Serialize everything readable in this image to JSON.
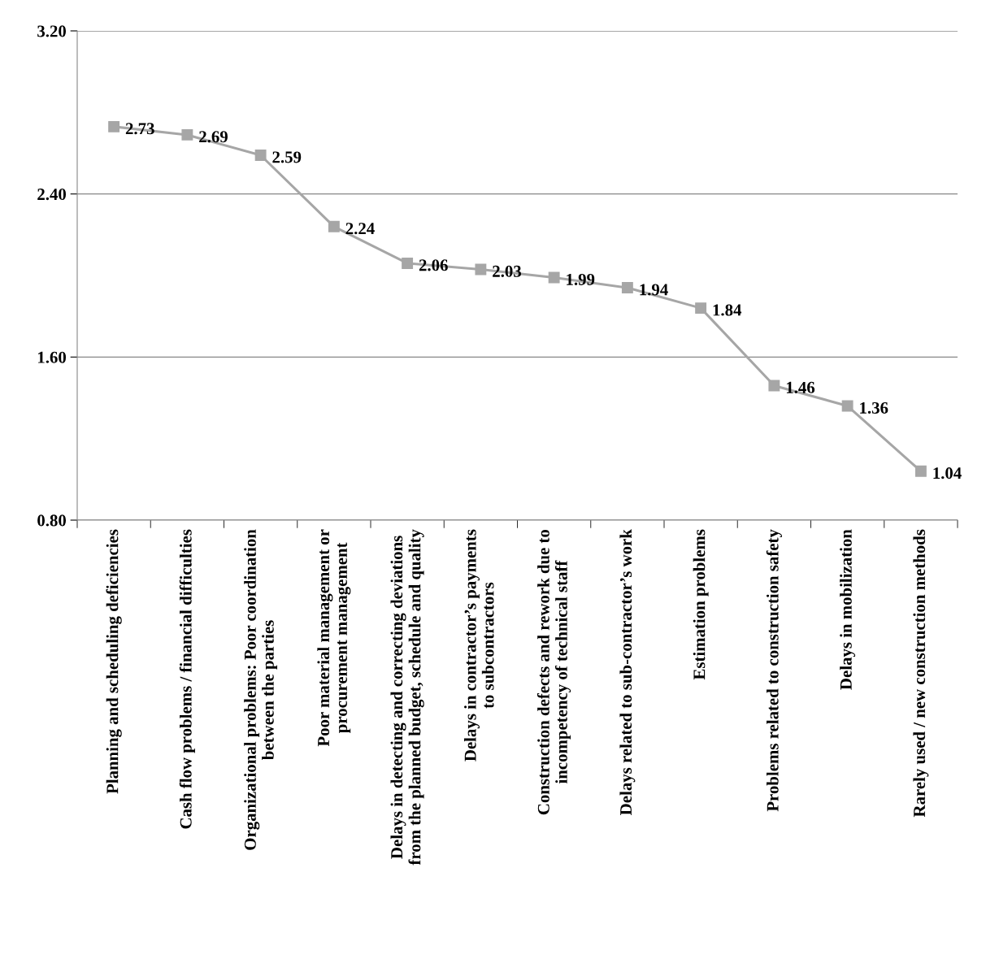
{
  "chart_data": {
    "type": "line",
    "categories": [
      "Planning and scheduling deficiencies",
      "Cash flow problems / financial difficulties",
      "Organizational problems: Poor coordination\nbetween the parties",
      "Poor material management or\nprocurement management",
      "Delays in detecting and correcting deviations\nfrom the planned budget, schedule and quality",
      "Delays in contractor’s payments\nto subcontractors",
      "Construction defects and rework due to\nincompetency of technical staff",
      "Delays related to sub-contractor’s work",
      "Estimation problems",
      "Problems related to construction safety",
      "Delays in mobilization",
      "Rarely used / new construction methods"
    ],
    "series": [
      {
        "color": "#a6a6a6",
        "values": [
          2.73,
          2.69,
          2.59,
          2.24,
          2.06,
          2.03,
          1.99,
          1.94,
          1.84,
          1.46,
          1.36,
          1.04
        ]
      }
    ],
    "ylim": [
      0.8,
      3.2
    ],
    "yticks": [
      {
        "value": 0.8,
        "label": "0.80"
      },
      {
        "value": 1.6,
        "label": "1.60"
      },
      {
        "value": 2.4,
        "label": "2.40"
      },
      {
        "value": 3.2,
        "label": "3.20"
      }
    ],
    "grid": "y",
    "marker": "square",
    "line_style": "solid",
    "data_labels": true,
    "legend": false
  }
}
